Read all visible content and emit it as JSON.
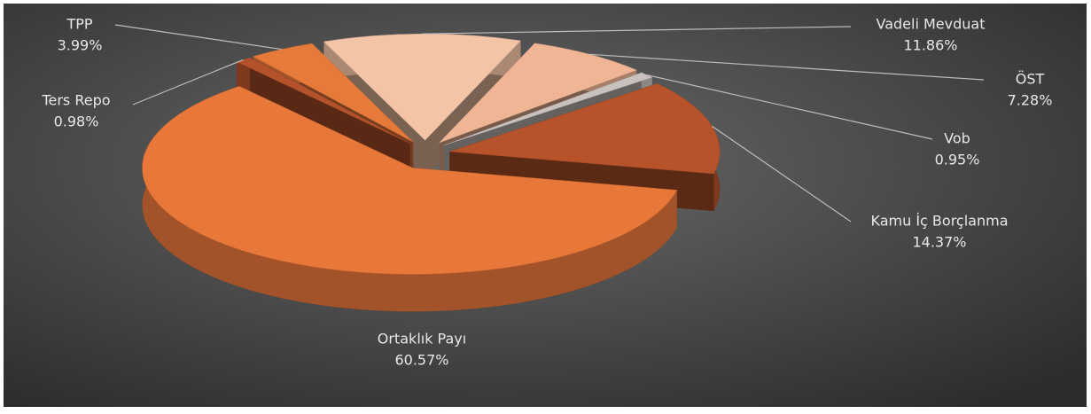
{
  "chart_data": {
    "type": "pie3d",
    "categories": [
      "Vadeli Mevduat",
      "ÖST",
      "Vob",
      "Kamu İç Borçlanma",
      "Ortaklık Payı",
      "Ters Repo",
      "TPP"
    ],
    "values": [
      11.86,
      7.28,
      0.95,
      14.37,
      60.57,
      0.98,
      3.99
    ],
    "value_labels": [
      "11.86%",
      "7.28%",
      "0.95%",
      "14.37%",
      "60.57%",
      "0.98%",
      "3.99%"
    ],
    "colors": [
      "#f3c4a6",
      "#efb594",
      "#c9c1bd",
      "#b6532a",
      "#e8773a",
      "#b4522b",
      "#e57a3b"
    ]
  }
}
